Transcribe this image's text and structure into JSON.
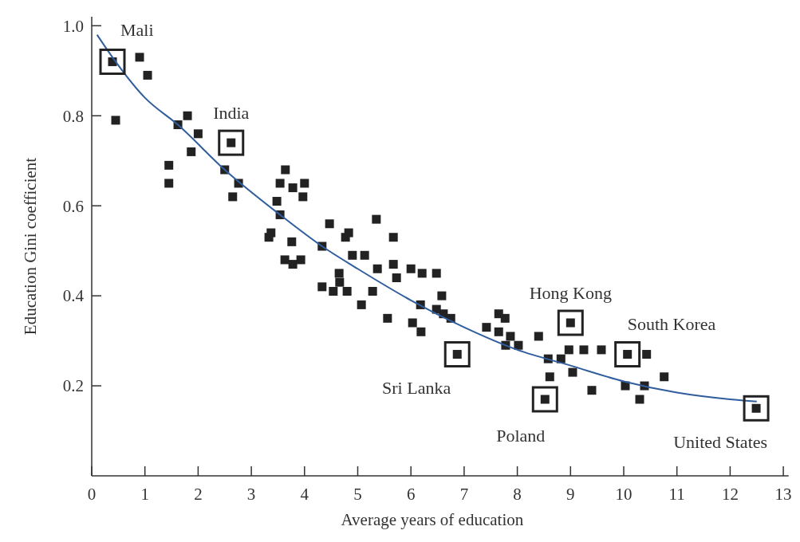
{
  "chart_data": {
    "type": "scatter",
    "xlabel": "Average years of education",
    "ylabel": "Education Gini coefficient",
    "xlim": [
      0,
      13.1
    ],
    "ylim": [
      0,
      1.02
    ],
    "xticks": [
      0,
      1,
      2,
      3,
      4,
      5,
      6,
      7,
      8,
      9,
      10,
      11,
      12,
      13
    ],
    "yticks": [
      0.2,
      0.4,
      0.6,
      0.8,
      {
        "value": 1,
        "label": "1.0"
      }
    ],
    "grid": false,
    "marker": "square",
    "series": [
      {
        "color": "#222222",
        "x": [
          0.39,
          0.9,
          1.05,
          0.45,
          1.62,
          1.8,
          2.0,
          1.87,
          1.45,
          1.45,
          2.62,
          2.5,
          2.76,
          2.65,
          3.64,
          3.54,
          3.78,
          4.0,
          3.97,
          3.48,
          3.54,
          3.37,
          3.33,
          3.76,
          3.63,
          3.78,
          3.93,
          4.33,
          4.47,
          4.83,
          4.77,
          5.35,
          5.67,
          4.9,
          5.13,
          5.37,
          5.67,
          6.0,
          6.21,
          6.48,
          5.73,
          4.65,
          4.66,
          4.33,
          4.54,
          4.8,
          5.28,
          5.07,
          5.56,
          6.03,
          6.19,
          6.58,
          6.18,
          6.48,
          6.61,
          6.75,
          6.87,
          7.42,
          7.65,
          7.77,
          7.65,
          7.87,
          7.78,
          8.02,
          8.4,
          9.0,
          8.58,
          8.82,
          8.97,
          9.25,
          9.58,
          10.07,
          10.43,
          8.61,
          9.04,
          9.4,
          8.52,
          10.03,
          10.39,
          10.76,
          10.3,
          12.49
        ],
        "values": [
          0.92,
          0.93,
          0.89,
          0.79,
          0.78,
          0.8,
          0.76,
          0.72,
          0.69,
          0.65,
          0.74,
          0.68,
          0.65,
          0.62,
          0.68,
          0.65,
          0.64,
          0.65,
          0.62,
          0.61,
          0.58,
          0.54,
          0.53,
          0.52,
          0.48,
          0.47,
          0.48,
          0.51,
          0.56,
          0.54,
          0.53,
          0.57,
          0.53,
          0.49,
          0.49,
          0.46,
          0.47,
          0.46,
          0.45,
          0.45,
          0.44,
          0.45,
          0.43,
          0.42,
          0.41,
          0.41,
          0.41,
          0.38,
          0.35,
          0.34,
          0.32,
          0.4,
          0.38,
          0.37,
          0.36,
          0.35,
          0.27,
          0.33,
          0.36,
          0.35,
          0.32,
          0.31,
          0.29,
          0.29,
          0.31,
          0.34,
          0.26,
          0.26,
          0.28,
          0.28,
          0.28,
          0.27,
          0.27,
          0.22,
          0.23,
          0.19,
          0.17,
          0.2,
          0.2,
          0.22,
          0.17,
          0.15
        ]
      },
      {
        "type": "line",
        "color": "#2f5d9e",
        "line_style": "solid",
        "marker": "none",
        "x": [
          0.1,
          0.39,
          1,
          1.62,
          2.5,
          3.54,
          4.33,
          5,
          6,
          7,
          8,
          9,
          10,
          11,
          12,
          12.5
        ],
        "values": [
          0.98,
          0.93,
          0.84,
          0.78,
          0.68,
          0.58,
          0.51,
          0.46,
          0.39,
          0.33,
          0.28,
          0.245,
          0.21,
          0.185,
          0.17,
          0.165
        ]
      }
    ],
    "annotations": [
      {
        "text": "Mali",
        "x": 0.39,
        "y": 0.92
      },
      {
        "text": "India",
        "x": 2.62,
        "y": 0.74
      },
      {
        "text": "Sri Lanka",
        "x": 6.87,
        "y": 0.27
      },
      {
        "text": "Hong Kong",
        "x": 9.0,
        "y": 0.34
      },
      {
        "text": "South Korea",
        "x": 10.07,
        "y": 0.27
      },
      {
        "text": "Poland",
        "x": 8.52,
        "y": 0.17
      },
      {
        "text": "United States",
        "x": 12.49,
        "y": 0.15
      }
    ]
  }
}
